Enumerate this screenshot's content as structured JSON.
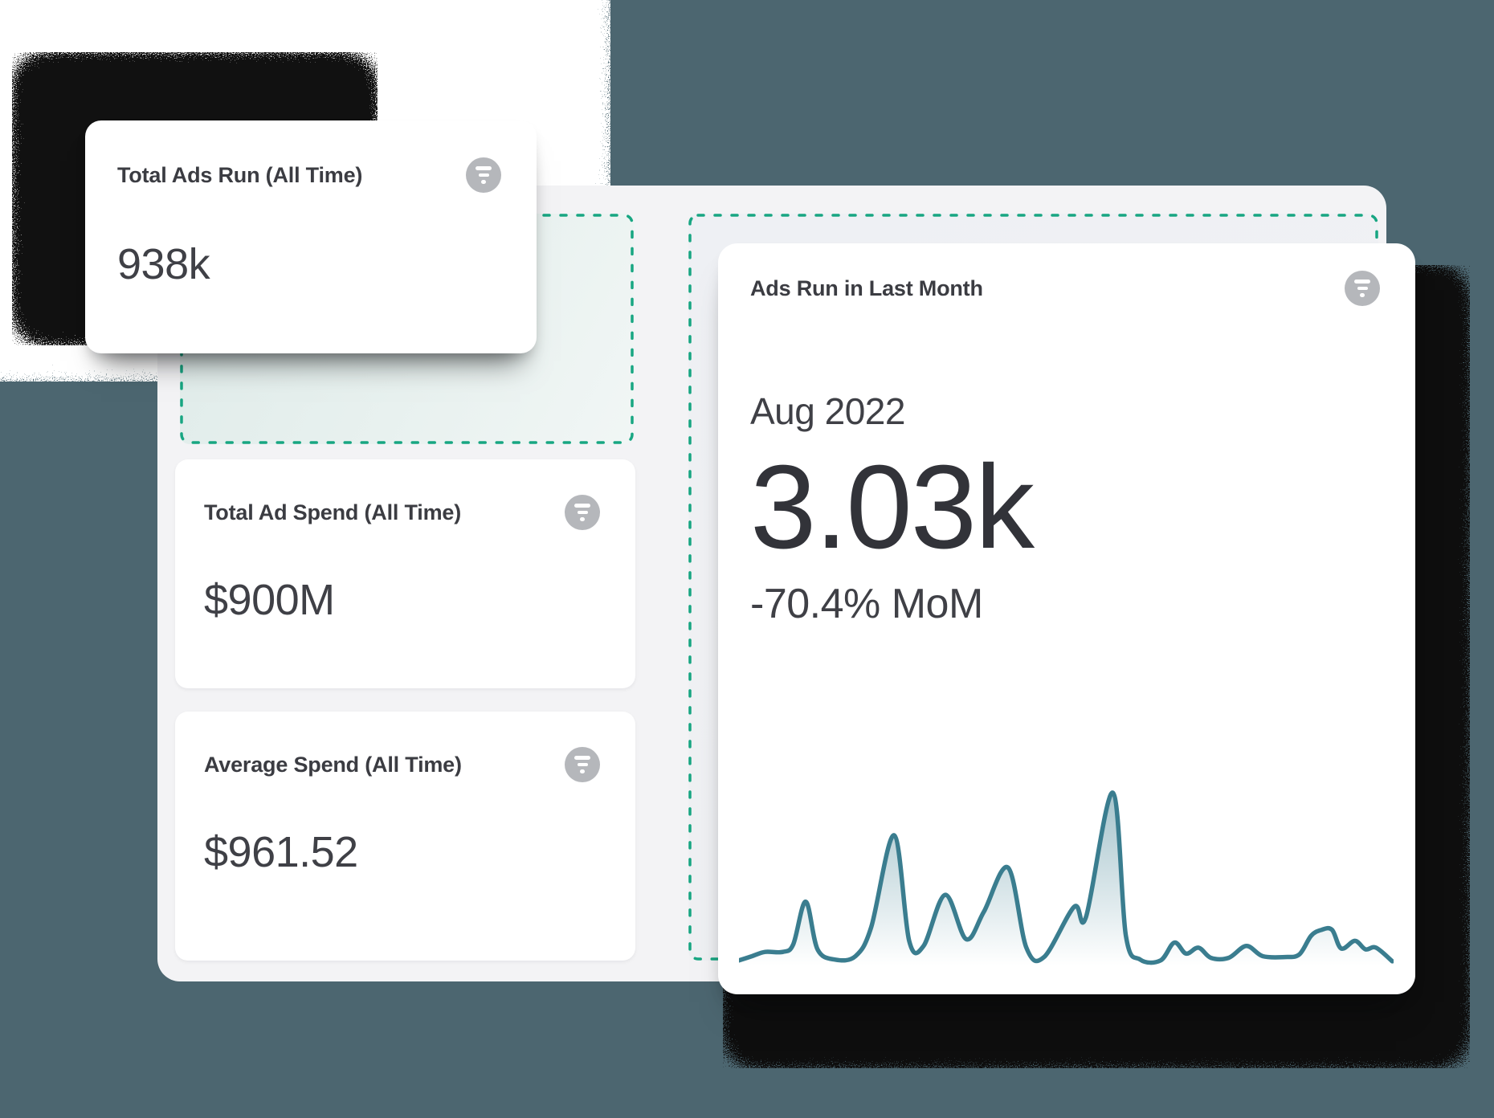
{
  "cards": {
    "total_ads_run": {
      "title": "Total Ads Run (All Time)",
      "value": "938k"
    },
    "total_ad_spend": {
      "title": "Total Ad Spend (All Time)",
      "value": "$900M"
    },
    "average_spend": {
      "title": "Average Spend (All Time)",
      "value": "$961.52"
    },
    "ads_run_last_month": {
      "title": "Ads Run in Last Month",
      "period": "Aug 2022",
      "value": "3.03k",
      "change": "-70.4% MoM"
    }
  },
  "icons": {
    "filter": "filter-lines-icon"
  },
  "colors": {
    "accent": "#18a682",
    "slate_background": "#4c6670",
    "panel": "#f3f3f5",
    "card": "#ffffff",
    "title_text": "#3b3c42",
    "value_text": "#3f4046",
    "icon_circle": "#b5b7bb"
  },
  "chart_data": {
    "type": "area",
    "title": "Ads Run in Last Month",
    "axes": "hidden",
    "y_normalized": true,
    "ylim": [
      0,
      100
    ],
    "line_color": "#3a7d8f",
    "fill_top": "rgba(58,125,143,0.45)",
    "fill_bottom": "rgba(58,125,143,0)",
    "series": [
      {
        "name": "Ads Run",
        "points": [
          [
            0,
            1.5
          ],
          [
            2,
            4
          ],
          [
            4,
            6.5
          ],
          [
            6.7,
            6.5
          ],
          [
            8.3,
            11
          ],
          [
            10.2,
            36
          ],
          [
            12,
            8
          ],
          [
            14.7,
            2
          ],
          [
            17.8,
            4
          ],
          [
            20.2,
            21
          ],
          [
            23.7,
            75
          ],
          [
            26,
            13
          ],
          [
            28.2,
            10
          ],
          [
            31.5,
            40
          ],
          [
            34.7,
            14
          ],
          [
            37.4,
            30
          ],
          [
            41.1,
            56
          ],
          [
            43.9,
            9
          ],
          [
            46.6,
            3.5
          ],
          [
            51.2,
            33
          ],
          [
            53,
            27
          ],
          [
            57.1,
            100
          ],
          [
            59.1,
            16
          ],
          [
            61.3,
            2
          ],
          [
            64.4,
            1.5
          ],
          [
            66.5,
            12
          ],
          [
            68.3,
            5.5
          ],
          [
            70.2,
            9
          ],
          [
            72.1,
            3
          ],
          [
            74.8,
            3
          ],
          [
            77.5,
            10
          ],
          [
            80,
            4
          ],
          [
            83.4,
            3.5
          ],
          [
            85.6,
            5
          ],
          [
            87.4,
            16
          ],
          [
            89,
            19.5
          ],
          [
            90.6,
            19.5
          ],
          [
            92,
            8.5
          ],
          [
            94.1,
            13
          ],
          [
            95.7,
            8
          ],
          [
            97.3,
            9
          ],
          [
            99.8,
            1
          ]
        ]
      }
    ]
  }
}
